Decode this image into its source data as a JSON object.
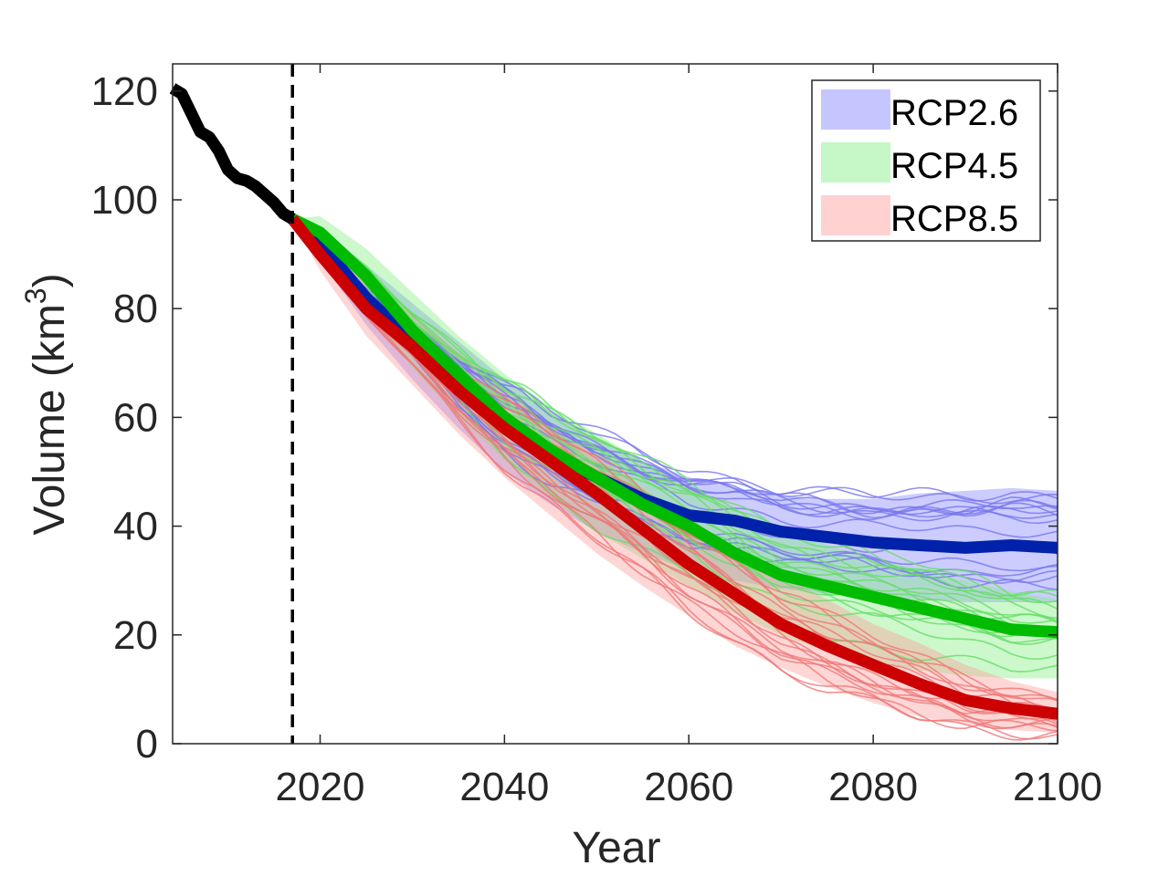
{
  "chart_data": {
    "type": "line",
    "xlabel": "Year",
    "ylabel_main": "Volume (km",
    "ylabel_sup": "3",
    "ylabel_close": ")",
    "xlim": [
      2004,
      2100
    ],
    "ylim": [
      0,
      125
    ],
    "xticks": [
      "2020",
      "2040",
      "2060",
      "2080",
      "2100"
    ],
    "yticks": [
      "0",
      "20",
      "40",
      "60",
      "80",
      "100",
      "120"
    ],
    "grid": false,
    "legend_position": "top-right",
    "reference_line": {
      "x": 2017,
      "style": "dashed",
      "color": "#000000"
    },
    "observed": {
      "color": "#000000",
      "x": [
        2004,
        2005,
        2006,
        2007,
        2008,
        2009,
        2010,
        2011,
        2012,
        2013,
        2014,
        2015,
        2016,
        2017
      ],
      "y": [
        120.5,
        119.5,
        116,
        112.5,
        111.5,
        109,
        105.5,
        104,
        103.5,
        102.5,
        101,
        99.5,
        97.5,
        96.5
      ]
    },
    "series": [
      {
        "name": "RCP2.6",
        "color": "#0022aa",
        "band_color": "#8080ff",
        "member_color": "#7777ee",
        "x": [
          2017,
          2020,
          2025,
          2030,
          2035,
          2040,
          2045,
          2050,
          2055,
          2060,
          2065,
          2070,
          2075,
          2080,
          2085,
          2090,
          2095,
          2100
        ],
        "y": [
          96.5,
          92,
          82,
          74,
          66,
          59,
          53,
          49,
          45,
          42,
          41,
          39,
          38,
          37,
          36.5,
          36,
          36.5,
          36
        ],
        "band_low": [
          96.5,
          89,
          77,
          67,
          58,
          50,
          44,
          39,
          35,
          32,
          30,
          28.5,
          27.5,
          27,
          26.5,
          26,
          26,
          26
        ],
        "band_high": [
          96.5,
          95,
          88,
          81,
          74,
          67,
          61,
          56,
          52,
          49,
          47,
          45.5,
          45,
          45,
          46,
          46.5,
          47,
          46.5
        ]
      },
      {
        "name": "RCP4.5",
        "color": "#00bb00",
        "band_color": "#80ee80",
        "member_color": "#66dd66",
        "x": [
          2017,
          2020,
          2025,
          2030,
          2035,
          2040,
          2045,
          2050,
          2055,
          2060,
          2065,
          2070,
          2075,
          2080,
          2085,
          2090,
          2095,
          2100
        ],
        "y": [
          96.5,
          94,
          86,
          76,
          68,
          60,
          54,
          49,
          44,
          40,
          35,
          31,
          29,
          27,
          25,
          23,
          21,
          20.5
        ],
        "band_low": [
          96.5,
          91,
          80,
          69,
          60,
          52,
          45,
          39,
          34,
          29,
          24,
          20,
          17,
          15,
          13.5,
          12.5,
          12,
          12
        ],
        "band_high": [
          96.5,
          97,
          91,
          83,
          75,
          68,
          62,
          57,
          52,
          47.5,
          43,
          39.5,
          36.5,
          34,
          32,
          30,
          28,
          26.5
        ]
      },
      {
        "name": "RCP8.5",
        "color": "#cc0000",
        "band_color": "#ff9999",
        "member_color": "#ee7777",
        "x": [
          2017,
          2020,
          2025,
          2030,
          2035,
          2040,
          2045,
          2050,
          2055,
          2060,
          2065,
          2070,
          2075,
          2080,
          2085,
          2090,
          2095,
          2100
        ],
        "y": [
          96.5,
          90,
          80,
          73,
          65,
          58,
          52,
          46,
          39.5,
          33,
          27.5,
          22,
          18,
          14.5,
          11,
          8,
          6.5,
          5.5
        ],
        "band_low": [
          96.5,
          87,
          75,
          66,
          57,
          49,
          42,
          35,
          29,
          23.5,
          18,
          14,
          10.5,
          7.5,
          5,
          3.5,
          2.5,
          2
        ],
        "band_high": [
          96.5,
          93,
          85,
          79,
          72,
          65,
          59,
          53,
          47,
          41.5,
          36,
          31,
          26.5,
          22,
          18.5,
          14.5,
          11.5,
          9.5
        ]
      }
    ]
  }
}
